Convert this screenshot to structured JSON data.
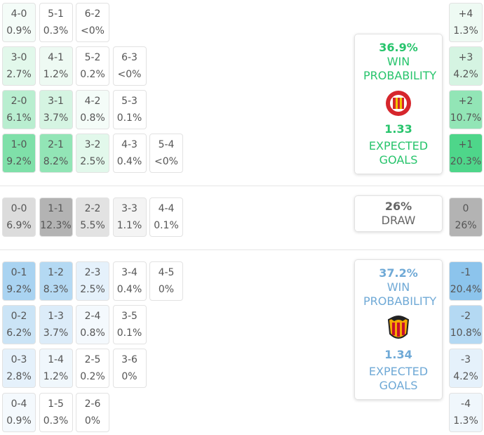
{
  "home": {
    "rows": [
      [
        {
          "score": "4-0",
          "pct": "0.9%",
          "color": "#f4fcf8"
        },
        {
          "score": "5-1",
          "pct": "0.3%",
          "color": "#ffffff"
        },
        {
          "score": "6-2",
          "pct": "<0%",
          "color": "#ffffff"
        }
      ],
      [
        {
          "score": "3-0",
          "pct": "2.7%",
          "color": "#e2f8eb"
        },
        {
          "score": "4-1",
          "pct": "1.2%",
          "color": "#eefaf3"
        },
        {
          "score": "5-2",
          "pct": "0.2%",
          "color": "#ffffff"
        },
        {
          "score": "6-3",
          "pct": "<0%",
          "color": "#ffffff"
        }
      ],
      [
        {
          "score": "2-0",
          "pct": "6.1%",
          "color": "#b9eed0"
        },
        {
          "score": "3-1",
          "pct": "3.7%",
          "color": "#d5f4e2"
        },
        {
          "score": "4-2",
          "pct": "0.8%",
          "color": "#f4fcf8"
        },
        {
          "score": "5-3",
          "pct": "0.1%",
          "color": "#ffffff"
        }
      ],
      [
        {
          "score": "1-0",
          "pct": "9.2%",
          "color": "#7fe0a9"
        },
        {
          "score": "2-1",
          "pct": "8.2%",
          "color": "#92e5b6"
        },
        {
          "score": "3-2",
          "pct": "2.5%",
          "color": "#e2f8eb"
        },
        {
          "score": "4-3",
          "pct": "0.4%",
          "color": "#ffffff"
        },
        {
          "score": "5-4",
          "pct": "<0%",
          "color": "#ffffff"
        }
      ]
    ],
    "summary": {
      "pct": "36.9%",
      "label": "WIN PROBABILITY",
      "xg": "1.33",
      "xg_label": "EXPECTED GOALS"
    },
    "margins": [
      {
        "margin": "+4",
        "pct": "1.3%",
        "color": "#eefaf3"
      },
      {
        "margin": "+3",
        "pct": "4.2%",
        "color": "#d5f4e2"
      },
      {
        "margin": "+2",
        "pct": "10.7%",
        "color": "#92e5b6"
      },
      {
        "margin": "+1",
        "pct": "20.3%",
        "color": "#4ed68a"
      }
    ]
  },
  "draw": {
    "cells": [
      {
        "score": "0-0",
        "pct": "6.9%",
        "color": "#dcdcdc"
      },
      {
        "score": "1-1",
        "pct": "12.3%",
        "color": "#b3b3b3"
      },
      {
        "score": "2-2",
        "pct": "5.5%",
        "color": "#e2e2e2"
      },
      {
        "score": "3-3",
        "pct": "1.1%",
        "color": "#f4f4f4"
      },
      {
        "score": "4-4",
        "pct": "0.1%",
        "color": "#ffffff"
      }
    ],
    "summary": {
      "pct": "26%",
      "label": "DRAW"
    },
    "margin": {
      "margin": "0",
      "pct": "26%",
      "color": "#b3b3b3"
    }
  },
  "away": {
    "rows": [
      [
        {
          "score": "0-1",
          "pct": "9.2%",
          "color": "#a9d3f1"
        },
        {
          "score": "1-2",
          "pct": "8.3%",
          "color": "#b4d9f3"
        },
        {
          "score": "2-3",
          "pct": "2.5%",
          "color": "#e5f1fb"
        },
        {
          "score": "3-4",
          "pct": "0.4%",
          "color": "#ffffff"
        },
        {
          "score": "4-5",
          "pct": "0%",
          "color": "#ffffff"
        }
      ],
      [
        {
          "score": "0-2",
          "pct": "6.2%",
          "color": "#cbe4f6"
        },
        {
          "score": "1-3",
          "pct": "3.7%",
          "color": "#dcecf9"
        },
        {
          "score": "2-4",
          "pct": "0.8%",
          "color": "#f4f9fd"
        },
        {
          "score": "3-5",
          "pct": "0.1%",
          "color": "#ffffff"
        }
      ],
      [
        {
          "score": "0-3",
          "pct": "2.8%",
          "color": "#e5f1fb"
        },
        {
          "score": "1-4",
          "pct": "1.2%",
          "color": "#f0f7fc"
        },
        {
          "score": "2-5",
          "pct": "0.2%",
          "color": "#ffffff"
        },
        {
          "score": "3-6",
          "pct": "0%",
          "color": "#ffffff"
        }
      ],
      [
        {
          "score": "0-4",
          "pct": "0.9%",
          "color": "#f4f9fd"
        },
        {
          "score": "1-5",
          "pct": "0.3%",
          "color": "#ffffff"
        },
        {
          "score": "2-6",
          "pct": "0%",
          "color": "#ffffff"
        }
      ]
    ],
    "summary": {
      "pct": "37.2%",
      "label": "WIN PROBABILITY",
      "xg": "1.34",
      "xg_label": "EXPECTED GOALS"
    },
    "margins": [
      {
        "margin": "-1",
        "pct": "20.4%",
        "color": "#8cc4ec"
      },
      {
        "margin": "-2",
        "pct": "10.8%",
        "color": "#b4d9f3"
      },
      {
        "margin": "-3",
        "pct": "4.2%",
        "color": "#e5f1fb"
      },
      {
        "margin": "-4",
        "pct": "1.3%",
        "color": "#f0f7fc"
      }
    ]
  }
}
